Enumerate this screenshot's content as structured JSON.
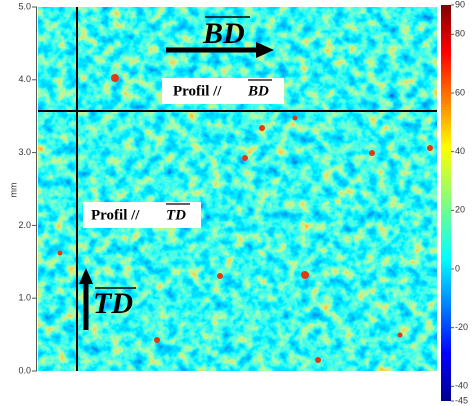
{
  "chart_data": {
    "type": "heatmap",
    "y_label": "mm",
    "ylim": [
      0,
      5
    ],
    "yticks": [
      {
        "value": 0,
        "label": "0.0"
      },
      {
        "value": 1,
        "label": "1.0"
      },
      {
        "value": 2,
        "label": "2.0"
      },
      {
        "value": 3,
        "label": "3.0"
      },
      {
        "value": 4,
        "label": "4.0"
      },
      {
        "value": 5,
        "label": "5.0"
      }
    ],
    "clim": [
      -45,
      90
    ],
    "cticks": [
      -45,
      -40,
      -20,
      0,
      20,
      40,
      60,
      80,
      90
    ],
    "annotations": [
      "Profil //",
      "BD",
      "Profil //",
      "TD",
      "BD",
      "TD"
    ]
  }
}
